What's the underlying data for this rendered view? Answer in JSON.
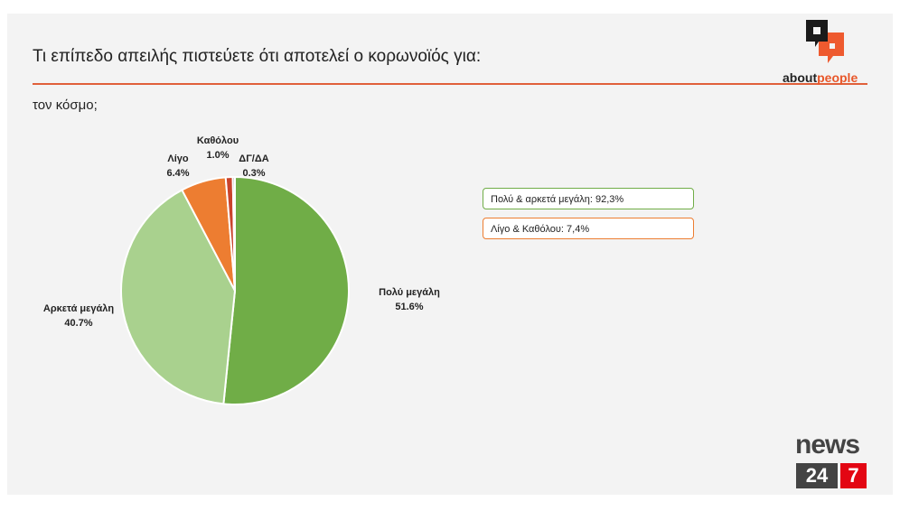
{
  "header": {
    "title": "Τι επίπεδο απειλής πιστεύετε ότι αποτελεί ο κορωνοϊός για:",
    "subtitle": "τον κόσμο;"
  },
  "logos": {
    "aboutpeople_a": "about",
    "aboutpeople_b": "people",
    "news": "news",
    "n24": "24",
    "n7": "7"
  },
  "chart_data": {
    "type": "pie",
    "title": "τον κόσμο;",
    "slices": [
      {
        "label": "Πολύ μεγάλη",
        "value": 51.6,
        "display": "51.6%",
        "color": "#70ad47"
      },
      {
        "label": "Αρκετά μεγάλη",
        "value": 40.7,
        "display": "40.7%",
        "color": "#a9d18e"
      },
      {
        "label": "Λίγο",
        "value": 6.4,
        "display": "6.4%",
        "color": "#ed7d31"
      },
      {
        "label": "Καθόλου",
        "value": 1.0,
        "display": "1.0%",
        "color": "#c9432c"
      },
      {
        "label": "ΔΓ/ΔΑ",
        "value": 0.3,
        "display": "0.3%",
        "color": "#7f7f7f"
      }
    ]
  },
  "summary": [
    {
      "text": "Πολύ & αρκετά μεγάλη: 92,3%",
      "color": "#70ad47"
    },
    {
      "text": "Λίγο & Καθόλου: 7,4%",
      "color": "#ed7d31"
    }
  ]
}
